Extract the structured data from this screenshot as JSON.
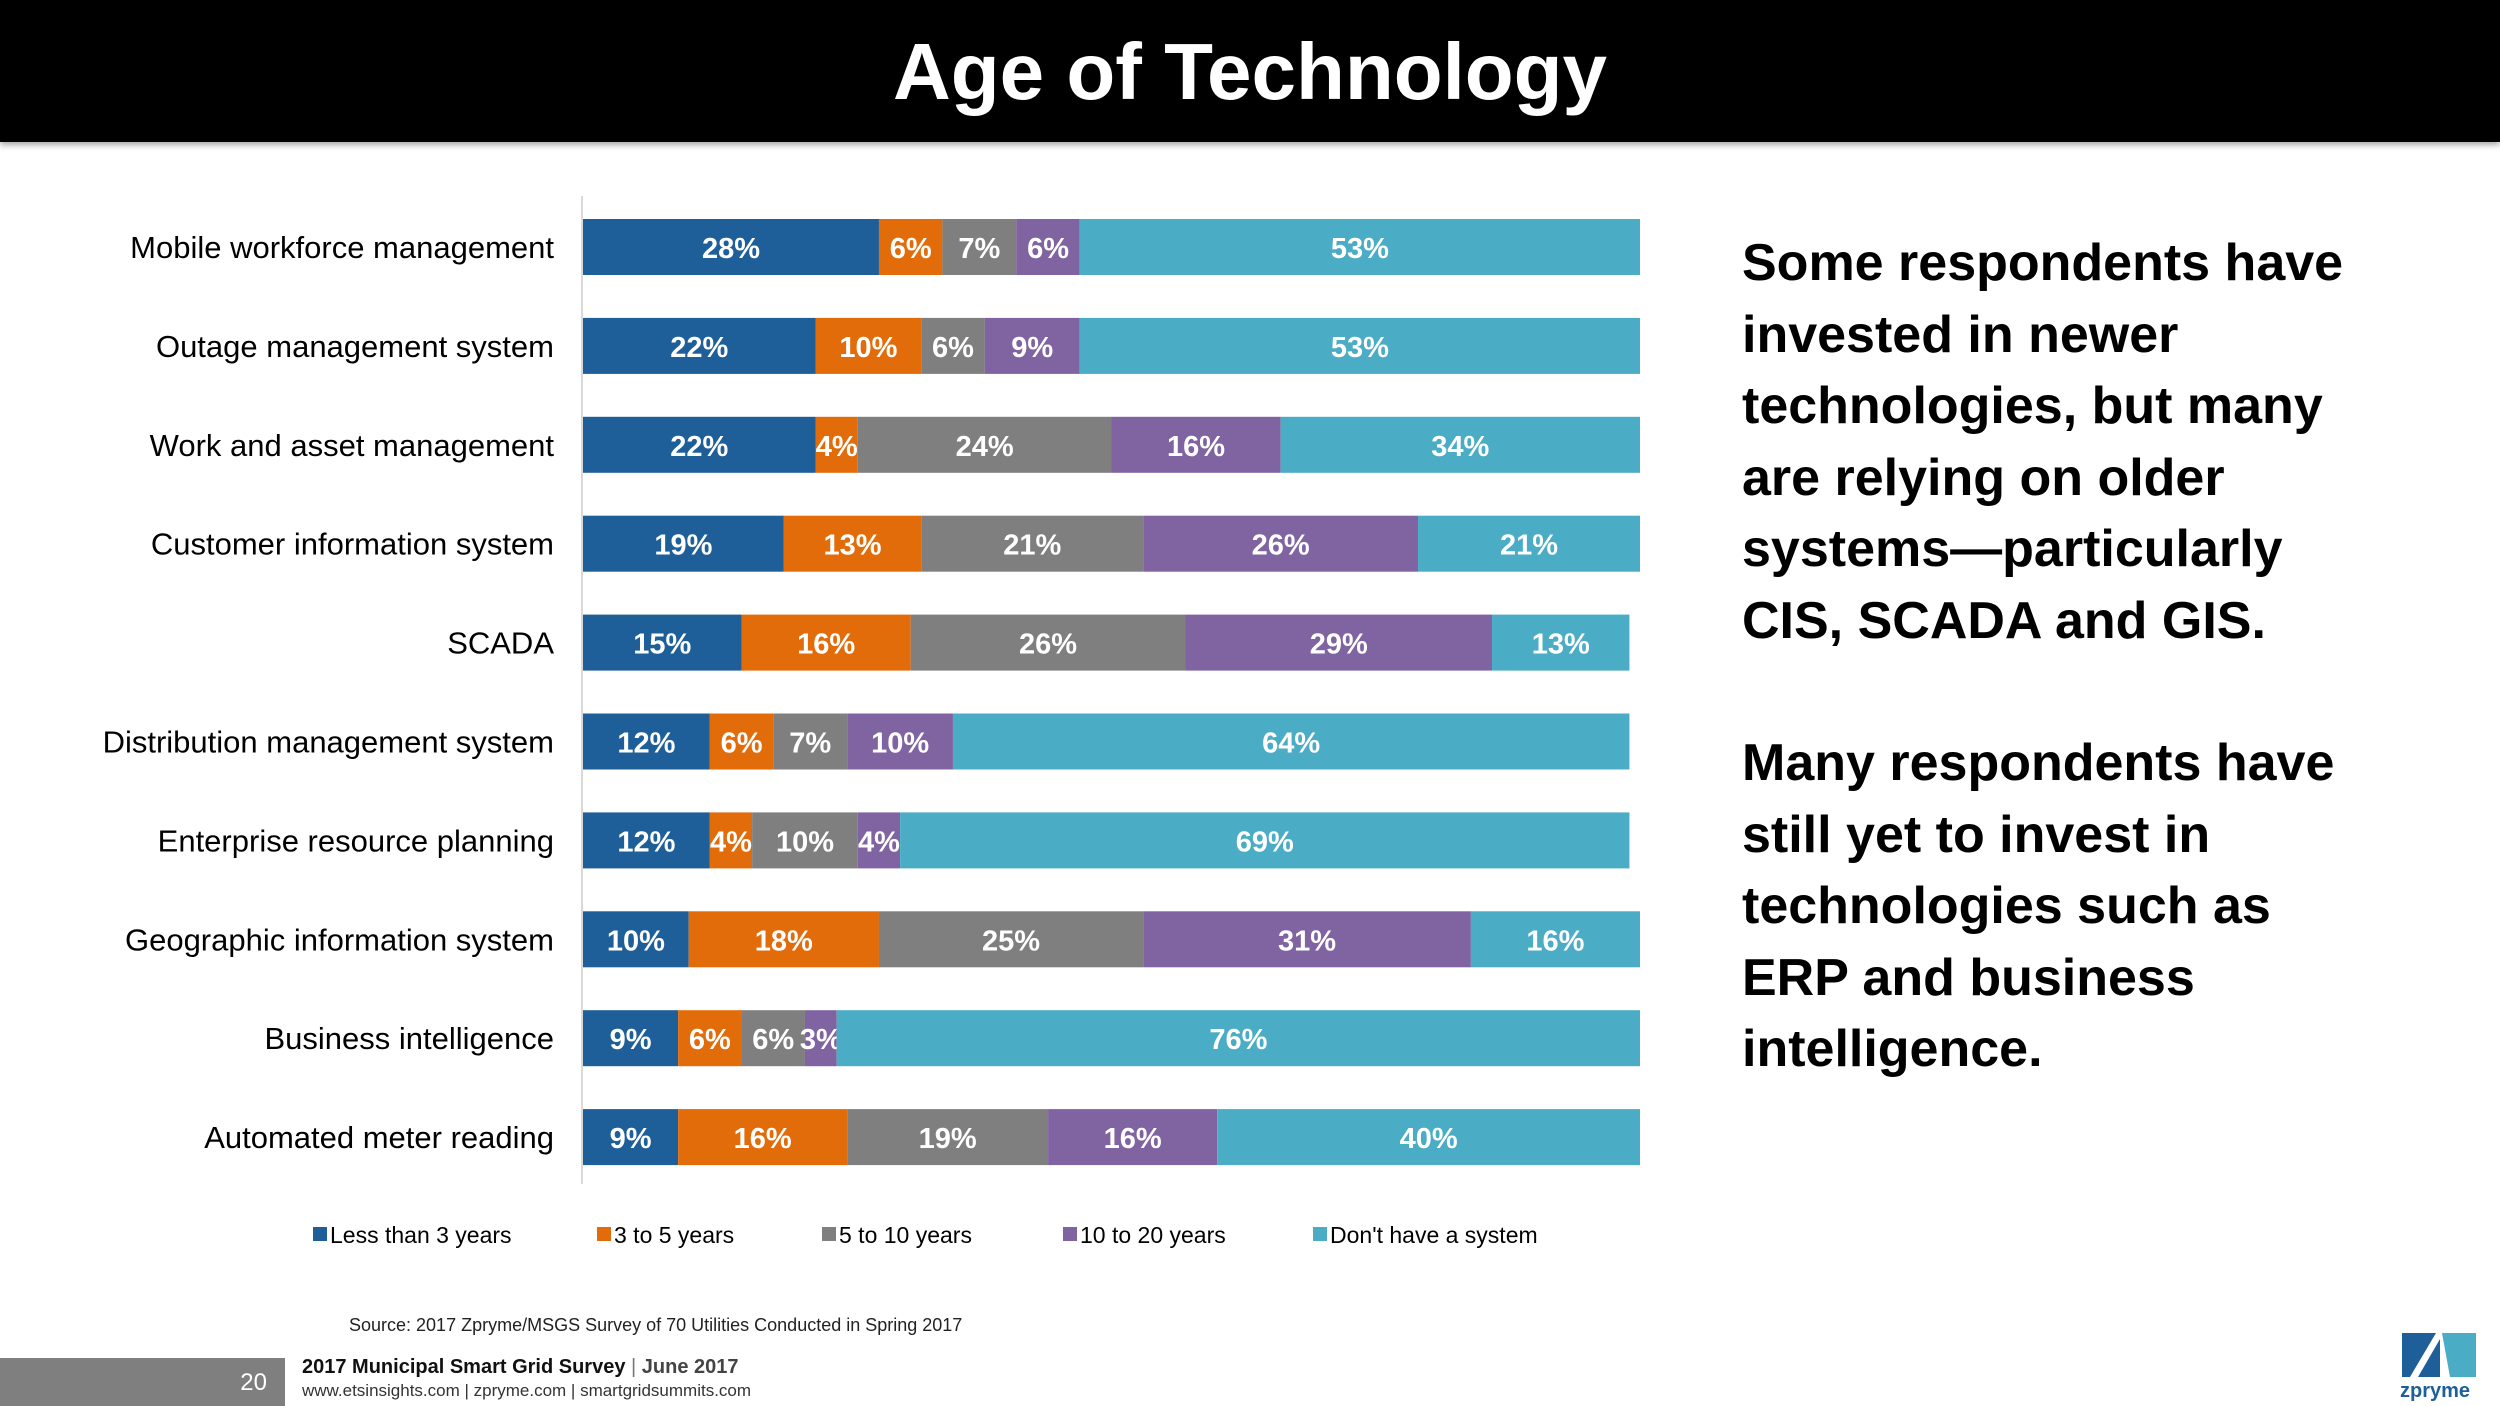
{
  "title": "Age of Technology",
  "chart_data": {
    "type": "bar",
    "orientation": "horizontal-stacked-100",
    "categories": [
      "Mobile workforce management",
      "Outage management system",
      "Work and asset management",
      "Customer information system",
      "SCADA",
      "Distribution management system",
      "Enterprise resource planning",
      "Geographic information system",
      "Business intelligence",
      "Automated meter reading"
    ],
    "series": [
      {
        "name": "Less than 3 years",
        "color": "#1f5f99",
        "values": [
          28,
          22,
          22,
          19,
          15,
          12,
          12,
          10,
          9,
          9
        ]
      },
      {
        "name": "3 to 5 years",
        "color": "#e36c0a",
        "values": [
          6,
          10,
          4,
          13,
          16,
          6,
          4,
          18,
          6,
          16
        ]
      },
      {
        "name": "5 to 10 years",
        "color": "#7f7f7f",
        "values": [
          7,
          6,
          24,
          21,
          26,
          7,
          10,
          25,
          6,
          19
        ]
      },
      {
        "name": "10 to 20 years",
        "color": "#8064a2",
        "values": [
          6,
          9,
          16,
          26,
          29,
          10,
          4,
          31,
          3,
          16
        ]
      },
      {
        "name": "Don't have a system",
        "color": "#4bacc6",
        "values": [
          53,
          53,
          34,
          21,
          13,
          64,
          69,
          16,
          76,
          40
        ]
      }
    ],
    "value_suffix": "%",
    "legend_position": "bottom",
    "xlabel": "",
    "ylabel": ""
  },
  "commentary": {
    "paragraph1": "Some respondents have invested in newer technologies, but many are relying on older systems—particularly CIS, SCADA and GIS.",
    "paragraph2": "Many respondents have still yet to invest in technologies such as ERP and business intelligence."
  },
  "source": "Source: 2017 Zpryme/MSGS Survey of 70 Utilities Conducted in Spring 2017",
  "footer": {
    "page_number": "20",
    "survey_name": "2017 Municipal Smart Grid Survey",
    "separator": "|",
    "date": "June 2017",
    "links": "www.etsinsights.com | zpryme.com | smartgridsummits.com"
  },
  "logo": {
    "text": "zpryme",
    "color": "#1f5f99"
  }
}
